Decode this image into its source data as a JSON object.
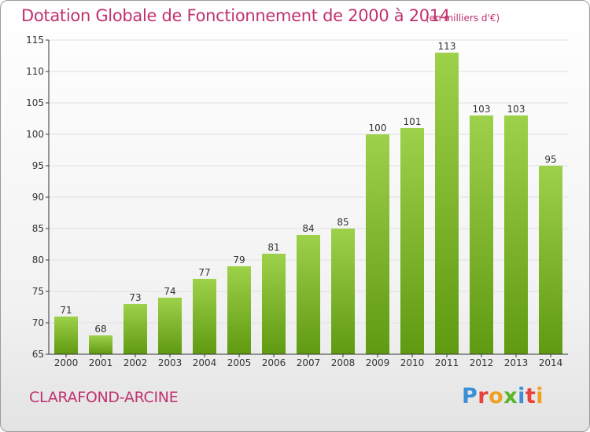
{
  "header": {
    "title": "Dotation Globale de Fonctionnement de 2000 à 2014",
    "subtitle": "(en milliers d'€)"
  },
  "footer": {
    "commune": "CLARAFOND-ARCINE",
    "logo_text": "Proxiti"
  },
  "colors": {
    "title": "#c0326e",
    "bar_top": "#9ed14a",
    "bar_bottom": "#5f9a10",
    "grid": "#e0e0e0",
    "axis": "#333333"
  },
  "chart_data": {
    "type": "bar",
    "categories": [
      "2000",
      "2001",
      "2002",
      "2003",
      "2004",
      "2005",
      "2006",
      "2007",
      "2008",
      "2009",
      "2010",
      "2011",
      "2012",
      "2013",
      "2014"
    ],
    "values": [
      71,
      68,
      73,
      74,
      77,
      79,
      81,
      84,
      85,
      100,
      101,
      113,
      103,
      103,
      95
    ],
    "title": "Dotation Globale de Fonctionnement de 2000 à 2014",
    "subtitle": "(en milliers d'€)",
    "xlabel": "",
    "ylabel": "",
    "ylim": [
      65,
      115
    ],
    "yticks": [
      65,
      70,
      75,
      80,
      85,
      90,
      95,
      100,
      105,
      110,
      115
    ],
    "grid": true,
    "data_labels": true
  }
}
